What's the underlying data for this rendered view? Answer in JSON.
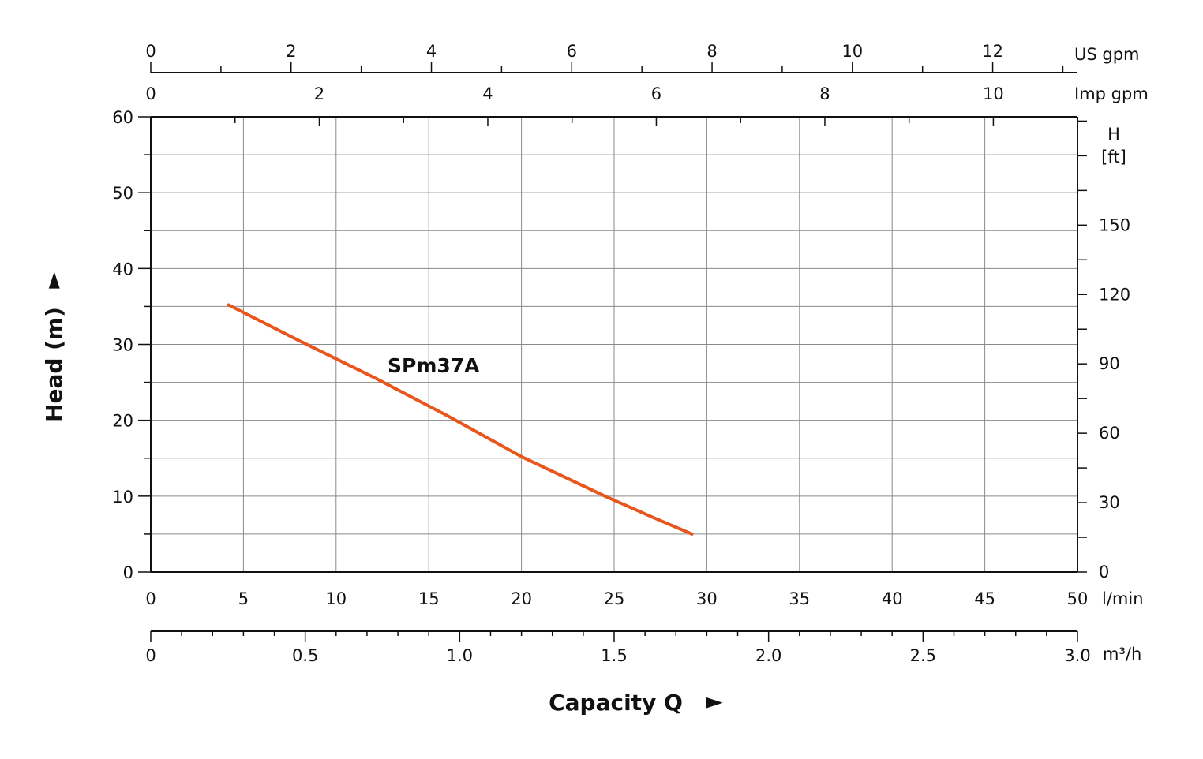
{
  "chart_data": {
    "type": "line",
    "title": "",
    "xlabel": "Capacity Q",
    "ylabel": "Head (m)",
    "x_unit": "l/min",
    "xlim": [
      0,
      50
    ],
    "ylim": [
      0,
      60
    ],
    "x_ticks": [
      "0",
      "5",
      "10",
      "15",
      "20",
      "25",
      "30",
      "35",
      "40",
      "45",
      "50"
    ],
    "y_ticks": [
      "0",
      "10",
      "20",
      "30",
      "40",
      "50",
      "60"
    ],
    "grid": true,
    "secondary_axes": {
      "us_gpm": {
        "label": "US gpm",
        "ticks": [
          "0",
          "2",
          "4",
          "6",
          "8",
          "10",
          "12"
        ]
      },
      "imp_gpm": {
        "label": "Imp gpm",
        "ticks": [
          "0",
          "2",
          "4",
          "6",
          "8",
          "10"
        ]
      },
      "head_ft": {
        "label_line1": "H",
        "label_line2": "[ft]",
        "ticks": [
          "0",
          "30",
          "60",
          "90",
          "120",
          "150"
        ]
      },
      "m3h": {
        "label": "m³/h",
        "ticks": [
          "0",
          "0.5",
          "1.0",
          "1.5",
          "2.0",
          "2.5",
          "3.0"
        ]
      }
    },
    "series": [
      {
        "name": "SPm37A",
        "color": "#e8561e",
        "points": [
          [
            4.2,
            35.2
          ],
          [
            8,
            30.5
          ],
          [
            12,
            25.7
          ],
          [
            16,
            20.6
          ],
          [
            20,
            15.2
          ],
          [
            24.5,
            10
          ],
          [
            27,
            7.3
          ],
          [
            29.2,
            5
          ]
        ]
      }
    ]
  }
}
